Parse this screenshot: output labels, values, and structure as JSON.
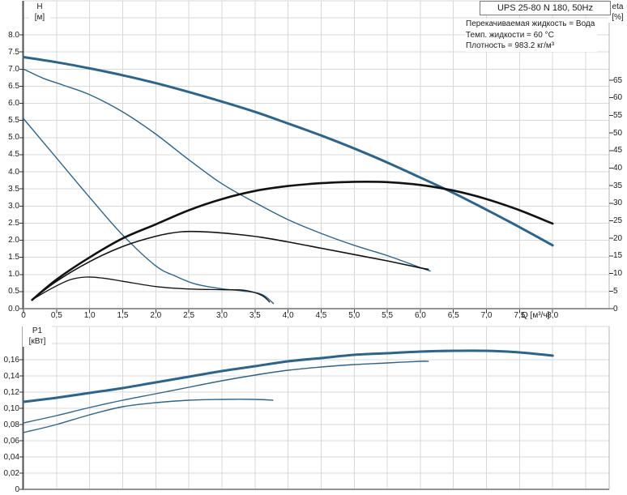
{
  "header": {
    "title": "UPS 25-80 N 180, 50Hz"
  },
  "annotations": {
    "line1": "Перекачиваемая жидкость = Вода",
    "line2": "Темп. жидкости = 60 °C",
    "line3": "Плотность = 983.2 кг/м³"
  },
  "colors": {
    "curve_blue": "#2c648c",
    "curve_black": "#121212",
    "grid": "#d8d8d8",
    "axis_left_border": "#4f4f4f",
    "axis_baseline": "#949494",
    "axis_right_border": "#b4b4b4",
    "tick": "#333333",
    "text": "#1b1b1b",
    "box_border": "#7a7a7a"
  },
  "chart_data": [
    {
      "id": "head-efficiency-chart",
      "type": "line",
      "title": "UPS 25-80 N 180, 50Hz",
      "grid": true,
      "legend": "none",
      "x_axis": {
        "label": "Q [м³/ч]",
        "min": 0,
        "max": 8.85,
        "tick_step": 0.5,
        "tick_labels": [
          "0",
          "0,5",
          "1,0",
          "1,5",
          "2,0",
          "2,5",
          "3,0",
          "3,5",
          "4,0",
          "4,5",
          "5,0",
          "5,5",
          "6,0",
          "6,5",
          "7,0",
          "7,5",
          "8,0"
        ]
      },
      "y_axis_left": {
        "name": "H",
        "unit": "[м]",
        "min": 0,
        "max": 9.0,
        "tick_step": 0.5,
        "tick_labels": [
          "0.0",
          "0.5",
          "1.0",
          "1.5",
          "2.0",
          "2.5",
          "3.0",
          "3.5",
          "4.0",
          "4.5",
          "5.0",
          "5.5",
          "6.0",
          "6.5",
          "7.0",
          "7.5",
          "8.0"
        ]
      },
      "y_axis_right": {
        "name": "eta",
        "unit": "[%]",
        "min": 0,
        "max": 87,
        "tick_step": 5,
        "tick_labels": [
          "0",
          "5",
          "10",
          "15",
          "20",
          "25",
          "30",
          "35",
          "40",
          "45",
          "50",
          "55",
          "60",
          "65"
        ]
      },
      "series": [
        {
          "name": "head-curve-speed-3",
          "axis": "H",
          "color": "#2c648c",
          "width": 3,
          "points": [
            [
              0,
              7.35
            ],
            [
              0.5,
              7.2
            ],
            [
              1,
              7.02
            ],
            [
              1.5,
              6.82
            ],
            [
              2,
              6.59
            ],
            [
              2.5,
              6.33
            ],
            [
              3,
              6.05
            ],
            [
              3.5,
              5.75
            ],
            [
              4,
              5.41
            ],
            [
              4.5,
              5.06
            ],
            [
              5,
              4.68
            ],
            [
              5.5,
              4.27
            ],
            [
              6,
              3.83
            ],
            [
              6.5,
              3.38
            ],
            [
              7,
              2.89
            ],
            [
              7.5,
              2.38
            ],
            [
              8,
              1.85
            ]
          ]
        },
        {
          "name": "head-curve-speed-2",
          "axis": "H",
          "color": "#2c648c",
          "width": 1.4,
          "points": [
            [
              0,
              7.0
            ],
            [
              0.3,
              6.73
            ],
            [
              0.6,
              6.53
            ],
            [
              1,
              6.25
            ],
            [
              1.5,
              5.75
            ],
            [
              2,
              5.1
            ],
            [
              2.5,
              4.35
            ],
            [
              3,
              3.65
            ],
            [
              3.5,
              3.1
            ],
            [
              4,
              2.6
            ],
            [
              4.5,
              2.2
            ],
            [
              5,
              1.85
            ],
            [
              5.5,
              1.55
            ],
            [
              6,
              1.2
            ],
            [
              6.15,
              1.1
            ]
          ]
        },
        {
          "name": "head-curve-speed-1",
          "axis": "H",
          "color": "#2c648c",
          "width": 1.4,
          "points": [
            [
              0,
              5.55
            ],
            [
              0.5,
              4.4
            ],
            [
              1,
              3.25
            ],
            [
              1.5,
              2.15
            ],
            [
              2,
              1.25
            ],
            [
              2.3,
              0.95
            ],
            [
              2.6,
              0.72
            ],
            [
              3,
              0.58
            ],
            [
              3.3,
              0.52
            ],
            [
              3.6,
              0.42
            ],
            [
              3.78,
              0.15
            ]
          ]
        },
        {
          "name": "efficiency-curve-speed-3",
          "axis": "eta",
          "color": "#121212",
          "width": 2.6,
          "points": [
            [
              0.13,
              2.5
            ],
            [
              0.5,
              8.3
            ],
            [
              1,
              14.6
            ],
            [
              1.5,
              20.0
            ],
            [
              2,
              24.0
            ],
            [
              2.5,
              28.0
            ],
            [
              3,
              31.2
            ],
            [
              3.5,
              33.5
            ],
            [
              4,
              34.9
            ],
            [
              4.5,
              35.7
            ],
            [
              5,
              36.1
            ],
            [
              5.5,
              36.0
            ],
            [
              6,
              35.2
            ],
            [
              6.5,
              33.6
            ],
            [
              7,
              31.2
            ],
            [
              7.5,
              28.0
            ],
            [
              8,
              24.2
            ]
          ]
        },
        {
          "name": "efficiency-curve-speed-2",
          "axis": "eta",
          "color": "#121212",
          "width": 1.6,
          "points": [
            [
              0.13,
              2.5
            ],
            [
              0.5,
              7.8
            ],
            [
              1,
              13.4
            ],
            [
              1.5,
              17.7
            ],
            [
              2,
              20.6
            ],
            [
              2.4,
              21.9
            ],
            [
              2.8,
              21.8
            ],
            [
              3.2,
              21.2
            ],
            [
              3.6,
              20.3
            ],
            [
              4,
              19.0
            ],
            [
              4.5,
              17.2
            ],
            [
              5,
              15.4
            ],
            [
              5.5,
              13.6
            ],
            [
              6,
              11.6
            ],
            [
              6.12,
              11.2
            ]
          ]
        },
        {
          "name": "efficiency-curve-speed-1",
          "axis": "eta",
          "color": "#121212",
          "width": 1.3,
          "points": [
            [
              0.13,
              2.5
            ],
            [
              0.4,
              5.5
            ],
            [
              0.7,
              8.2
            ],
            [
              0.95,
              9.0
            ],
            [
              1.2,
              8.7
            ],
            [
              1.5,
              7.8
            ],
            [
              2,
              6.3
            ],
            [
              2.5,
              5.6
            ],
            [
              3,
              5.4
            ],
            [
              3.35,
              5.2
            ],
            [
              3.6,
              3.8
            ],
            [
              3.72,
              1.9
            ]
          ]
        }
      ]
    },
    {
      "id": "power-chart",
      "type": "line",
      "grid": true,
      "legend": "none",
      "x_axis": {
        "min": 0,
        "max": 8.85,
        "tick_step": 0.5,
        "tick_labels": []
      },
      "y_axis_left": {
        "name": "P1",
        "unit": "[кВт]",
        "min": 0,
        "max": 0.201,
        "tick_step": 0.02,
        "tick_labels": [
          "0",
          "0,02",
          "0,04",
          "0,06",
          "0,08",
          "0,10",
          "0,12",
          "0,14",
          "0,16"
        ]
      },
      "series": [
        {
          "name": "power-curve-speed-3",
          "axis": "P",
          "color": "#2c648c",
          "width": 3,
          "points": [
            [
              0,
              0.108
            ],
            [
              0.5,
              0.113
            ],
            [
              1,
              0.119
            ],
            [
              1.5,
              0.125
            ],
            [
              2,
              0.132
            ],
            [
              2.5,
              0.139
            ],
            [
              3,
              0.146
            ],
            [
              3.5,
              0.152
            ],
            [
              4,
              0.158
            ],
            [
              4.5,
              0.162
            ],
            [
              5,
              0.166
            ],
            [
              5.5,
              0.168
            ],
            [
              6,
              0.17
            ],
            [
              6.5,
              0.171
            ],
            [
              7,
              0.171
            ],
            [
              7.5,
              0.169
            ],
            [
              8,
              0.165
            ]
          ]
        },
        {
          "name": "power-curve-speed-2",
          "axis": "P",
          "color": "#2c648c",
          "width": 1.4,
          "points": [
            [
              0,
              0.082
            ],
            [
              0.5,
              0.091
            ],
            [
              1,
              0.101
            ],
            [
              1.5,
              0.11
            ],
            [
              2,
              0.118
            ],
            [
              2.5,
              0.126
            ],
            [
              3,
              0.134
            ],
            [
              3.5,
              0.141
            ],
            [
              4,
              0.147
            ],
            [
              4.5,
              0.151
            ],
            [
              5,
              0.154
            ],
            [
              5.5,
              0.156
            ],
            [
              6,
              0.158
            ],
            [
              6.12,
              0.158
            ]
          ]
        },
        {
          "name": "power-curve-speed-1",
          "axis": "P",
          "color": "#2c648c",
          "width": 1.4,
          "points": [
            [
              0,
              0.07
            ],
            [
              0.5,
              0.08
            ],
            [
              1,
              0.092
            ],
            [
              1.5,
              0.102
            ],
            [
              2,
              0.107
            ],
            [
              2.5,
              0.11
            ],
            [
              3,
              0.111
            ],
            [
              3.5,
              0.111
            ],
            [
              3.77,
              0.11
            ]
          ]
        }
      ]
    }
  ]
}
